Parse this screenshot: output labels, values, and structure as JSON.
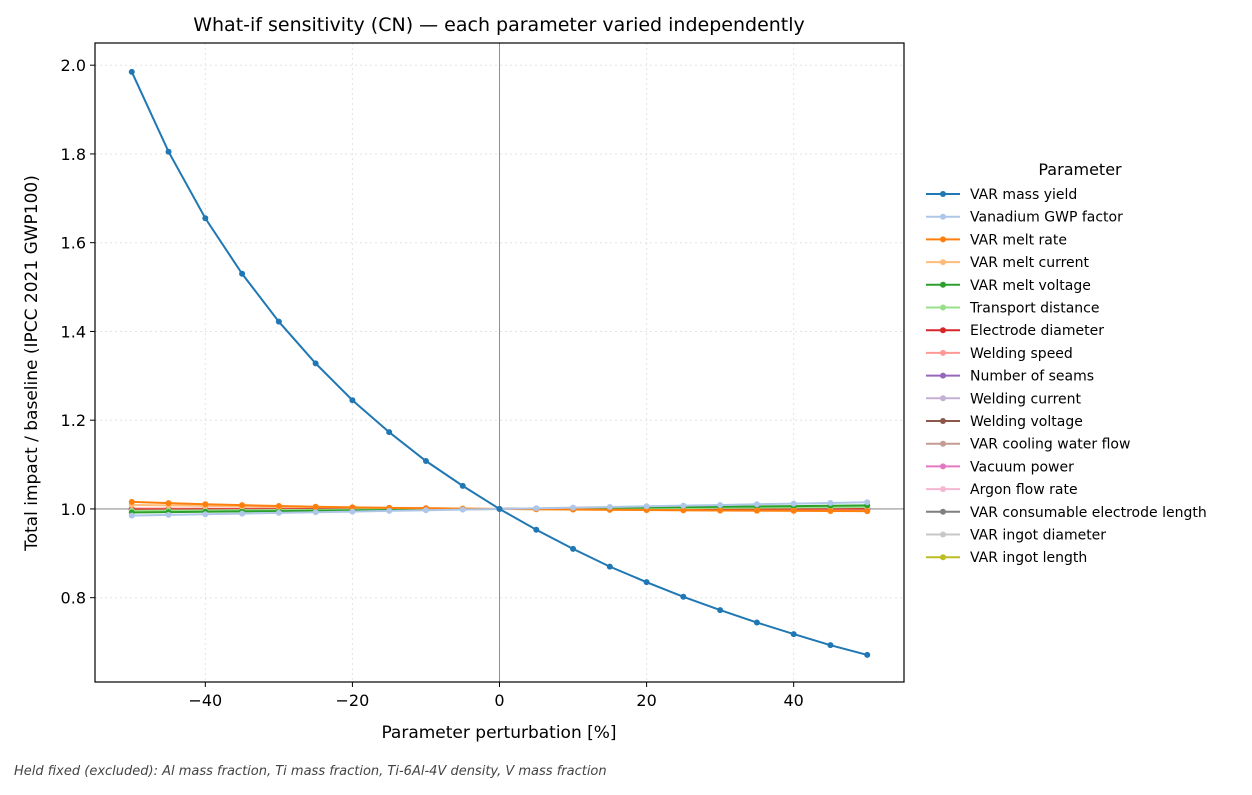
{
  "chart_data": {
    "type": "line",
    "title": "What-if sensitivity (CN) — each parameter varied independently",
    "xlabel": "Parameter perturbation [%]",
    "ylabel": "Total impact / baseline (IPCC 2021 GWP100)",
    "xlim": [
      -55,
      55
    ],
    "ylim": [
      0.61,
      2.05
    ],
    "xticks": [
      -40,
      -20,
      0,
      20,
      40
    ],
    "xtick_labels": [
      "−40",
      "−20",
      "0",
      "20",
      "40"
    ],
    "yticks": [
      0.8,
      1.0,
      1.2,
      1.4,
      1.6,
      1.8,
      2.0
    ],
    "ytick_labels": [
      "0.8",
      "1.0",
      "1.2",
      "1.4",
      "1.6",
      "1.8",
      "2.0"
    ],
    "grid": true,
    "reference_lines": {
      "x": 0,
      "y": 1.0
    },
    "legend_title": "Parameter",
    "legend_position": "right, outside plot",
    "x": [
      -50,
      -45,
      -40,
      -35,
      -30,
      -25,
      -20,
      -15,
      -10,
      -5,
      0,
      5,
      10,
      15,
      20,
      25,
      30,
      35,
      40,
      45,
      50
    ],
    "series": [
      {
        "name": "VAR mass yield",
        "color": "#1f77b4",
        "values": [
          1.985,
          1.805,
          1.655,
          1.53,
          1.422,
          1.328,
          1.245,
          1.173,
          1.108,
          1.052,
          1.0,
          0.953,
          0.91,
          0.87,
          0.835,
          0.802,
          0.772,
          0.744,
          0.718,
          0.693,
          0.671
        ]
      },
      {
        "name": "Vanadium GWP factor",
        "color": "#aec7e8",
        "values": [
          0.985,
          0.9865,
          0.988,
          0.9895,
          0.991,
          0.9925,
          0.994,
          0.9955,
          0.997,
          0.9985,
          1.0,
          1.0015,
          1.003,
          1.0045,
          1.006,
          1.0075,
          1.009,
          1.0105,
          1.012,
          1.0135,
          1.015
        ]
      },
      {
        "name": "VAR melt rate",
        "color": "#ff7f0e",
        "values": [
          1.016,
          1.013,
          1.0105,
          1.0085,
          1.0065,
          1.005,
          1.0035,
          1.0025,
          1.0015,
          1.0007,
          1.0,
          0.9993,
          0.9987,
          0.9981,
          0.9976,
          0.9971,
          0.9966,
          0.9962,
          0.9958,
          0.9954,
          0.995
        ]
      },
      {
        "name": "VAR melt current",
        "color": "#ffbb78",
        "values": [
          1.009,
          1.008,
          1.007,
          1.006,
          1.005,
          1.0045,
          1.0035,
          1.0025,
          1.0017,
          1.0008,
          1.0,
          0.9993,
          0.9986,
          0.998,
          0.9975,
          0.997,
          0.9966,
          0.9962,
          0.9958,
          0.9955,
          0.9952
        ]
      },
      {
        "name": "VAR melt voltage",
        "color": "#2ca02c",
        "values": [
          0.992,
          0.9928,
          0.9936,
          0.9944,
          0.9952,
          0.996,
          0.9968,
          0.9976,
          0.9984,
          0.9992,
          1.0,
          1.0008,
          1.0016,
          1.0024,
          1.0032,
          1.004,
          1.0048,
          1.0056,
          1.0064,
          1.0072,
          1.008
        ]
      },
      {
        "name": "Transport distance",
        "color": "#98df8a",
        "values": [
          0.996,
          0.9964,
          0.9968,
          0.9972,
          0.9976,
          0.998,
          0.9984,
          0.9988,
          0.9992,
          0.9996,
          1.0,
          1.0004,
          1.0008,
          1.0012,
          1.0016,
          1.002,
          1.0024,
          1.0028,
          1.0032,
          1.0036,
          1.004
        ]
      },
      {
        "name": "Electrode diameter",
        "color": "#d62728",
        "values": [
          0.999,
          0.9991,
          0.9992,
          0.9993,
          0.9994,
          0.9995,
          0.9996,
          0.9997,
          0.9998,
          0.9999,
          1.0,
          1.0001,
          1.0002,
          1.0003,
          1.0004,
          1.0005,
          1.0006,
          1.0007,
          1.0008,
          1.0009,
          1.001
        ]
      },
      {
        "name": "Welding speed",
        "color": "#ff9896",
        "values": [
          1.001,
          1.0009,
          1.0008,
          1.0007,
          1.0006,
          1.0005,
          1.0004,
          1.0003,
          1.0002,
          1.0001,
          1.0,
          0.9999,
          0.9998,
          0.9997,
          0.9997,
          0.9996,
          0.9996,
          0.9995,
          0.9995,
          0.9995,
          0.9994
        ]
      },
      {
        "name": "Number of seams",
        "color": "#9467bd",
        "values": [
          0.9995,
          0.9995,
          0.9996,
          0.9996,
          0.9997,
          0.9997,
          0.9998,
          0.9998,
          0.9999,
          0.9999,
          1.0,
          1.0001,
          1.0001,
          1.0002,
          1.0002,
          1.0003,
          1.0003,
          1.0004,
          1.0004,
          1.0005,
          1.0005
        ]
      },
      {
        "name": "Welding current",
        "color": "#c5b0d5",
        "values": [
          0.9995,
          0.9995,
          0.9996,
          0.9996,
          0.9997,
          0.9997,
          0.9998,
          0.9998,
          0.9999,
          0.9999,
          1.0,
          1.0001,
          1.0001,
          1.0002,
          1.0002,
          1.0003,
          1.0003,
          1.0004,
          1.0004,
          1.0005,
          1.0005
        ]
      },
      {
        "name": "Welding voltage",
        "color": "#8c564b",
        "values": [
          0.9995,
          0.9995,
          0.9996,
          0.9996,
          0.9997,
          0.9997,
          0.9998,
          0.9998,
          0.9999,
          0.9999,
          1.0,
          1.0001,
          1.0001,
          1.0002,
          1.0002,
          1.0003,
          1.0003,
          1.0004,
          1.0004,
          1.0005,
          1.0005
        ]
      },
      {
        "name": "VAR cooling water flow",
        "color": "#c49c94",
        "values": [
          0.9998,
          0.9998,
          0.9998,
          0.9999,
          0.9999,
          0.9999,
          0.9999,
          0.9999,
          1.0,
          1.0,
          1.0,
          1.0,
          1.0,
          1.0001,
          1.0001,
          1.0001,
          1.0001,
          1.0001,
          1.0002,
          1.0002,
          1.0002
        ]
      },
      {
        "name": "Vacuum power",
        "color": "#e377c2",
        "values": [
          0.9998,
          0.9998,
          0.9998,
          0.9999,
          0.9999,
          0.9999,
          0.9999,
          0.9999,
          1.0,
          1.0,
          1.0,
          1.0,
          1.0,
          1.0001,
          1.0001,
          1.0001,
          1.0001,
          1.0001,
          1.0002,
          1.0002,
          1.0002
        ]
      },
      {
        "name": "Argon flow rate",
        "color": "#f7b6d2",
        "values": [
          0.9999,
          0.9999,
          0.9999,
          0.9999,
          0.9999,
          1.0,
          1.0,
          1.0,
          1.0,
          1.0,
          1.0,
          1.0,
          1.0,
          1.0,
          1.0,
          1.0,
          1.0001,
          1.0001,
          1.0001,
          1.0001,
          1.0001
        ]
      },
      {
        "name": "VAR consumable electrode length",
        "color": "#7f7f7f",
        "values": [
          1.0,
          1.0,
          1.0,
          1.0,
          1.0,
          1.0,
          1.0,
          1.0,
          1.0,
          1.0,
          1.0,
          1.0,
          1.0,
          1.0,
          1.0,
          1.0,
          1.0,
          1.0,
          1.0,
          1.0,
          1.0
        ]
      },
      {
        "name": "VAR ingot diameter",
        "color": "#c7c7c7",
        "values": [
          1.0,
          1.0,
          1.0,
          1.0,
          1.0,
          1.0,
          1.0,
          1.0,
          1.0,
          1.0,
          1.0,
          1.0,
          1.0,
          1.0,
          1.0,
          1.0,
          1.0,
          1.0,
          1.0,
          1.0,
          1.0
        ]
      },
      {
        "name": "VAR ingot length",
        "color": "#bcbd22",
        "values": [
          1.0,
          1.0,
          1.0,
          1.0,
          1.0,
          1.0,
          1.0,
          1.0,
          1.0,
          1.0,
          1.0,
          1.0,
          1.0,
          1.0,
          1.0,
          1.0,
          1.0,
          1.0,
          1.0,
          1.0,
          1.0
        ]
      }
    ]
  },
  "footnote": "Held fixed (excluded): Al mass fraction, Ti mass fraction, Ti-6Al-4V density, V mass fraction"
}
